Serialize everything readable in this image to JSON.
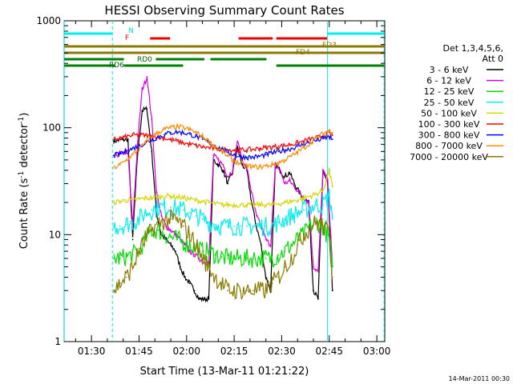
{
  "chart_data": {
    "type": "line",
    "title": "HESSI Observing Summary Count Rates",
    "xlabel": "Start Time (13-Mar-11 01:21:22)",
    "ylabel_main": "Count Rate (s",
    "ylabel_sup1": "-1",
    "ylabel_mid": " detector",
    "ylabel_sup2": "-1",
    "ylabel_end": ")",
    "yscale": "log",
    "ylim": [
      1,
      1000
    ],
    "xlim_minutes": [
      81.37,
      182.5
    ],
    "x_ticks": [
      {
        "value": 90,
        "label": "01:30"
      },
      {
        "value": 105,
        "label": "01:45"
      },
      {
        "value": 120,
        "label": "02:00"
      },
      {
        "value": 135,
        "label": "02:15"
      },
      {
        "value": 150,
        "label": "02:30"
      },
      {
        "value": 165,
        "label": "02:45"
      },
      {
        "value": 180,
        "label": "03:00"
      }
    ],
    "y_ticks": [
      {
        "value": 1,
        "label": "1"
      },
      {
        "value": 10,
        "label": "10"
      },
      {
        "value": 100,
        "label": "100"
      },
      {
        "value": 1000,
        "label": "1000"
      }
    ],
    "legend_header": [
      "Det 1,3,4,5,6,",
      "Att 0"
    ],
    "legend_position": "right",
    "footer_date": "14-Mar-2011 00:30",
    "series": [
      {
        "name": "3 - 6 keV",
        "color": "#000000",
        "x": [
          97,
          98.5,
          100,
          101.5,
          103,
          104.5,
          106,
          107.5,
          109,
          110.5,
          112,
          113.5,
          115,
          116.5,
          118,
          119.5,
          121,
          122.5,
          124,
          125.5,
          127,
          128.5,
          130,
          131.5,
          133,
          134.5,
          136,
          137.5,
          139,
          140.5,
          142,
          143.5,
          145,
          146.5,
          148,
          149.5,
          151,
          152.5,
          154,
          155.5,
          157,
          158.5,
          160,
          161.5,
          163,
          164.5,
          166
        ],
        "y": [
          75,
          76,
          77,
          78,
          9,
          55,
          145,
          150,
          60,
          16,
          10,
          9,
          8,
          7,
          5,
          4,
          3.5,
          3,
          2.5,
          2.5,
          2.5,
          50,
          45,
          40,
          30,
          38,
          65,
          45,
          40,
          20,
          12,
          8,
          4,
          3,
          45,
          40,
          35,
          38,
          30,
          25,
          22,
          20,
          3,
          2.5,
          40,
          30,
          3
        ]
      },
      {
        "name": "6 - 12 keV",
        "color": "#dd00dd",
        "x": [
          97,
          98.5,
          100,
          101.5,
          103,
          104.5,
          106,
          107.5,
          109,
          110.5,
          112,
          113.5,
          115,
          116.5,
          118,
          119.5,
          121,
          122.5,
          124,
          125.5,
          127,
          128.5,
          130,
          131.5,
          133,
          134.5,
          136,
          137.5,
          139,
          140.5,
          142,
          143.5,
          145,
          146.5,
          148,
          149.5,
          151,
          152.5,
          154,
          155.5,
          157,
          158.5,
          160,
          161.5,
          163,
          164.5,
          166
        ],
        "y": [
          55,
          56,
          58,
          60,
          12,
          70,
          230,
          300,
          120,
          25,
          15,
          12,
          11,
          10,
          9,
          8,
          7,
          6.5,
          6,
          5.5,
          5.5,
          55,
          50,
          45,
          35,
          40,
          75,
          50,
          42,
          25,
          15,
          12,
          9,
          8,
          45,
          40,
          30,
          32,
          28,
          25,
          22,
          20,
          5,
          4.5,
          40,
          32,
          5
        ]
      },
      {
        "name": "12 - 25 keV",
        "color": "#00dd00",
        "x": [
          97,
          99,
          101,
          103,
          105,
          107,
          109,
          111,
          113,
          115,
          117,
          119,
          121,
          123,
          125,
          127,
          129,
          131,
          133,
          135,
          137,
          139,
          141,
          143,
          145,
          147,
          149,
          151,
          153,
          155,
          157,
          159,
          161,
          163,
          165,
          166
        ],
        "y": [
          6,
          6,
          6.2,
          6.5,
          7,
          9,
          11,
          11,
          10,
          9.5,
          9,
          8.5,
          8,
          7.5,
          7,
          7,
          6.5,
          6.2,
          6,
          6,
          6,
          6,
          6,
          6,
          6,
          6,
          6.5,
          7,
          8,
          9,
          10,
          12,
          13,
          12,
          9,
          5
        ]
      },
      {
        "name": "25 - 50 keV",
        "color": "#00eeee",
        "x": [
          97,
          99,
          101,
          103,
          105,
          107,
          109,
          111,
          113,
          115,
          117,
          119,
          121,
          123,
          125,
          127,
          129,
          131,
          133,
          135,
          137,
          139,
          141,
          143,
          145,
          147,
          149,
          151,
          153,
          155,
          157,
          159,
          161,
          163,
          165,
          166
        ],
        "y": [
          12,
          12,
          12.5,
          13,
          14,
          16,
          17,
          18,
          18,
          18,
          17.5,
          17,
          16,
          15,
          14,
          13,
          12.5,
          12,
          12,
          12,
          12,
          12,
          12,
          12,
          12,
          12,
          13,
          14,
          15,
          16,
          17,
          18,
          19,
          19,
          23,
          14
        ]
      },
      {
        "name": "50 - 100 keV",
        "color": "#d6d600",
        "x": [
          97,
          99,
          101,
          103,
          105,
          107,
          109,
          111,
          113,
          115,
          117,
          119,
          121,
          123,
          125,
          127,
          129,
          131,
          133,
          135,
          137,
          139,
          141,
          143,
          145,
          147,
          149,
          151,
          153,
          155,
          157,
          159,
          161,
          163,
          165,
          166
        ],
        "y": [
          20,
          20.5,
          21,
          21,
          21.5,
          22,
          22,
          22.5,
          23,
          23,
          22.5,
          22,
          21.5,
          21,
          20.5,
          20,
          19.5,
          19,
          19,
          19,
          19,
          19,
          19,
          19,
          19,
          19,
          19.5,
          20,
          20.5,
          21,
          22,
          23,
          24,
          26,
          40,
          28
        ]
      },
      {
        "name": "100 - 300 keV",
        "color": "#ff0000",
        "x": [
          97,
          99,
          101,
          103,
          105,
          107,
          109,
          111,
          113,
          115,
          117,
          119,
          121,
          123,
          125,
          127,
          129,
          131,
          133,
          135,
          137,
          139,
          141,
          143,
          145,
          147,
          149,
          151,
          153,
          155,
          157,
          159,
          161,
          163,
          165,
          166
        ],
        "y": [
          78,
          80,
          82,
          85,
          85,
          85,
          84,
          82,
          80,
          77,
          75,
          72,
          70,
          68,
          66,
          65,
          64,
          63,
          62,
          62,
          62,
          62,
          63,
          64,
          65,
          66,
          67,
          68,
          70,
          72,
          75,
          78,
          80,
          84,
          90,
          85
        ]
      },
      {
        "name": "300 - 800 keV",
        "color": "#0000ff",
        "x": [
          97,
          99,
          101,
          103,
          105,
          107,
          109,
          111,
          113,
          115,
          117,
          119,
          121,
          123,
          125,
          127,
          129,
          131,
          133,
          135,
          137,
          139,
          141,
          143,
          145,
          147,
          149,
          151,
          153,
          155,
          157,
          159,
          161,
          163,
          165,
          166
        ],
        "y": [
          55,
          57,
          60,
          64,
          68,
          72,
          77,
          82,
          86,
          90,
          91,
          90,
          87,
          83,
          78,
          73,
          68,
          63,
          59,
          56,
          54,
          53,
          53,
          54,
          56,
          58,
          60,
          62,
          64,
          67,
          70,
          73,
          76,
          79,
          82,
          78
        ]
      },
      {
        "name": "800 - 7000 keV",
        "color": "#ff8c00",
        "x": [
          97,
          99,
          101,
          103,
          105,
          107,
          109,
          111,
          113,
          115,
          117,
          119,
          121,
          123,
          125,
          127,
          129,
          131,
          133,
          135,
          137,
          139,
          141,
          143,
          145,
          147,
          149,
          151,
          153,
          155,
          157,
          159,
          161,
          163,
          165,
          166
        ],
        "y": [
          42,
          45,
          50,
          56,
          63,
          72,
          82,
          90,
          97,
          100,
          102,
          100,
          96,
          90,
          83,
          75,
          67,
          60,
          54,
          49,
          46,
          44,
          43,
          43,
          44,
          45,
          47,
          50,
          54,
          59,
          65,
          72,
          80,
          88,
          95,
          90
        ]
      },
      {
        "name": "7000 - 20000 keV",
        "color": "#8c7a00",
        "x": [
          97,
          99,
          101,
          103,
          105,
          107,
          109,
          111,
          113,
          115,
          117,
          119,
          121,
          123,
          125,
          127,
          129,
          131,
          133,
          135,
          137,
          139,
          141,
          143,
          145,
          147,
          149,
          151,
          153,
          155,
          157,
          159,
          161,
          163,
          165,
          166
        ],
        "y": [
          3,
          3.5,
          4,
          5,
          7,
          9,
          11,
          12.5,
          13.5,
          14,
          13.5,
          12,
          10,
          8,
          6,
          5,
          4,
          3.5,
          3,
          3,
          3,
          3,
          3,
          3,
          3,
          3.5,
          4,
          5,
          6,
          8,
          10,
          12,
          13,
          12,
          10,
          4
        ]
      }
    ],
    "flag_bars": [
      {
        "label": "N",
        "label_color": "#00dddd",
        "color": "#00eeee",
        "segments": [
          [
            81.4,
            96.6
          ],
          [
            164.4,
            182.3
          ]
        ]
      },
      {
        "label": "F",
        "label_color": "#ff0000",
        "color": "#ee0000",
        "segments": [
          [
            108.5,
            114.8
          ],
          [
            136.4,
            147.2
          ],
          [
            148.3,
            164.3
          ]
        ]
      },
      {
        "label": "FD3",
        "label_color": "#8c7a00",
        "color": "#8c7a00",
        "segments": [
          [
            81.4,
            164.3
          ],
          [
            164.3,
            182.3
          ]
        ]
      },
      {
        "label": "FD4",
        "label_color": "#8c7a00",
        "color": "#8c7a00",
        "segments": [
          [
            81.4,
            182.3
          ]
        ]
      },
      {
        "label": "RD0",
        "label_color": "#006400",
        "color": "#008000",
        "segments": [
          [
            81.4,
            100.2
          ],
          [
            110.3,
            125.6
          ],
          [
            127.5,
            145.2
          ]
        ]
      },
      {
        "label": "RD6",
        "label_color": "#006400",
        "color": "#008000",
        "segments": [
          [
            81.4,
            97.4
          ],
          [
            100.2,
            118.9
          ],
          [
            148.3,
            182.3
          ]
        ]
      }
    ],
    "vertical_lines": [
      {
        "x": 81.4,
        "color": "#00eeee",
        "style": "solid"
      },
      {
        "x": 96.6,
        "color": "#00eeee",
        "style": "dashed"
      },
      {
        "x": 164.4,
        "color": "#00eeee",
        "style": "solid"
      },
      {
        "x": 182.3,
        "color": "#00eeee",
        "style": "dashed"
      }
    ]
  }
}
